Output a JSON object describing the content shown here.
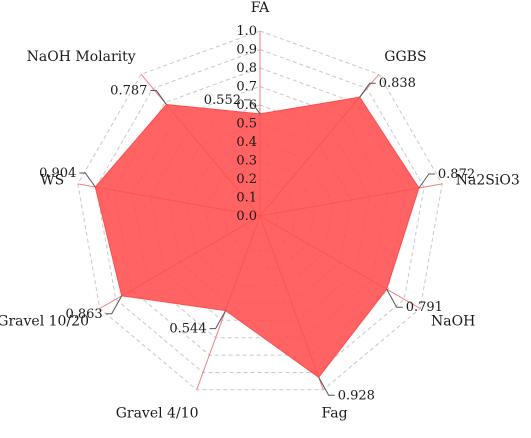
{
  "chart_data": {
    "type": "radar",
    "categories": [
      "FA",
      "GGBS",
      "Na2SiO3",
      "NaOH",
      "Fag",
      "Gravel 4/10",
      "Gravel 10/20",
      "WS",
      "NaOH Molarity"
    ],
    "values": [
      0.552,
      0.838,
      0.872,
      0.791,
      0.928,
      0.544,
      0.863,
      0.904,
      0.787
    ],
    "value_labels": [
      "0.552",
      "0.838",
      "0.872",
      "0.791",
      "0.928",
      "0.544",
      "0.863",
      "0.904",
      "0.787"
    ],
    "rlim": [
      0,
      1
    ],
    "ticks": [
      "0.0",
      "0.1",
      "0.2",
      "0.3",
      "0.4",
      "0.5",
      "0.6",
      "0.7",
      "0.8",
      "0.9",
      "1.0"
    ],
    "grid": true,
    "fill_color": "#ff4d4d",
    "axis_color": "#f08080",
    "grid_color": "#c8c8c8"
  }
}
